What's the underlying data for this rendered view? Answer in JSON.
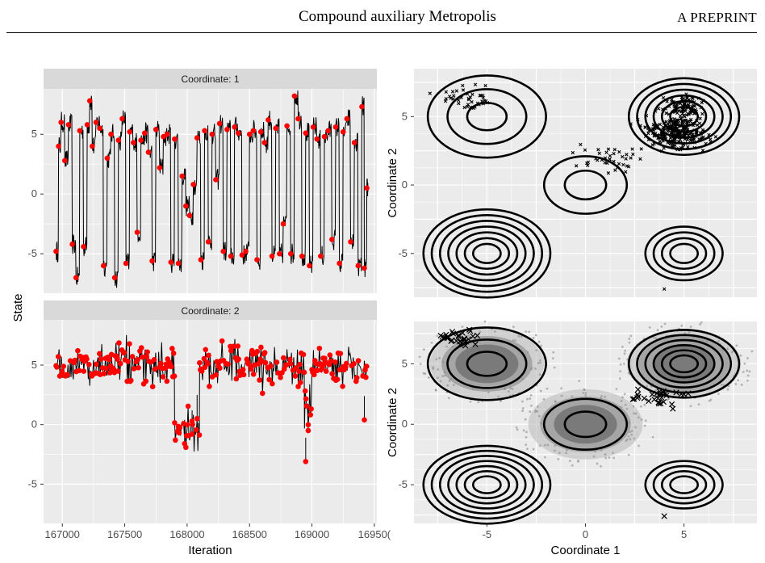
{
  "header": {
    "title": "Compound auxiliary Metropolis",
    "right": "A PREPRINT"
  },
  "colors": {
    "panel_bg": "#ebebeb",
    "grid": "#ffffff",
    "strip_bg": "#d9d9d9",
    "trace": "#000000",
    "accepted": "#ff0000",
    "samples": "#7a7a7a"
  },
  "chart_data": [
    {
      "type": "line",
      "strip": "Coordinate: 1",
      "ylabel": "State",
      "xlabel": "Iteration",
      "x_ticks": [
        "167000",
        "167500",
        "168000",
        "168500",
        "169000",
        "16950("
      ],
      "y_ticks": [
        "5",
        "0",
        "-5"
      ],
      "xlim": [
        166850,
        169520
      ],
      "ylim": [
        -8.3,
        8.8
      ],
      "points": [
        [
          166950,
          -4.8
        ],
        [
          166970,
          4.0
        ],
        [
          166990,
          6.0
        ],
        [
          167020,
          2.8
        ],
        [
          167050,
          5.8
        ],
        [
          167080,
          -4.2
        ],
        [
          167110,
          -7.0
        ],
        [
          167140,
          5.3
        ],
        [
          167170,
          -4.4
        ],
        [
          167200,
          5.8
        ],
        [
          167220,
          7.8
        ],
        [
          167240,
          4.0
        ],
        [
          167270,
          6.0
        ],
        [
          167300,
          5.5
        ],
        [
          167330,
          -6.0
        ],
        [
          167360,
          3.0
        ],
        [
          167390,
          5.0
        ],
        [
          167420,
          -7.0
        ],
        [
          167450,
          4.5
        ],
        [
          167480,
          6.3
        ],
        [
          167510,
          -5.8
        ],
        [
          167540,
          5.2
        ],
        [
          167570,
          4.3
        ],
        [
          167600,
          -3.2
        ],
        [
          167630,
          4.5
        ],
        [
          167660,
          5.1
        ],
        [
          167690,
          3.5
        ],
        [
          167720,
          -5.6
        ],
        [
          167750,
          5.4
        ],
        [
          167780,
          2.2
        ],
        [
          167810,
          4.8
        ],
        [
          167840,
          5.0
        ],
        [
          167870,
          -5.7
        ],
        [
          167900,
          4.6
        ],
        [
          167930,
          -5.8
        ],
        [
          167960,
          1.5
        ],
        [
          167990,
          -1.0
        ],
        [
          168020,
          -1.8
        ],
        [
          168050,
          0.8
        ],
        [
          168080,
          4.7
        ],
        [
          168110,
          -5.5
        ],
        [
          168140,
          5.3
        ],
        [
          168170,
          -4.0
        ],
        [
          168200,
          5.0
        ],
        [
          168230,
          1.2
        ],
        [
          168260,
          5.9
        ],
        [
          168290,
          -4.8
        ],
        [
          168320,
          5.4
        ],
        [
          168350,
          -5.2
        ],
        [
          168380,
          5.6
        ],
        [
          168410,
          5.1
        ],
        [
          168440,
          -5.1
        ],
        [
          168470,
          -4.8
        ],
        [
          168500,
          5.0
        ],
        [
          168530,
          5.3
        ],
        [
          168560,
          -5.5
        ],
        [
          168590,
          5.2
        ],
        [
          168620,
          4.3
        ],
        [
          168650,
          6.2
        ],
        [
          168680,
          -5.2
        ],
        [
          168710,
          5.5
        ],
        [
          168740,
          -5.0
        ],
        [
          168770,
          -2.5
        ],
        [
          168800,
          5.7
        ],
        [
          168830,
          -5.0
        ],
        [
          168860,
          8.2
        ],
        [
          168890,
          6.3
        ],
        [
          168920,
          -5.2
        ],
        [
          168950,
          5.1
        ],
        [
          168980,
          -6.0
        ],
        [
          169010,
          5.6
        ],
        [
          169040,
          4.6
        ],
        [
          169070,
          -5.2
        ],
        [
          169100,
          4.8
        ],
        [
          169130,
          5.3
        ],
        [
          169160,
          -3.8
        ],
        [
          169190,
          5.6
        ],
        [
          169220,
          -5.8
        ],
        [
          169250,
          5.2
        ],
        [
          169280,
          6.3
        ],
        [
          169310,
          -4.0
        ],
        [
          169340,
          4.3
        ],
        [
          169370,
          -6.0
        ],
        [
          169400,
          7.3
        ],
        [
          169420,
          -6.2
        ],
        [
          169440,
          0.5
        ]
      ]
    },
    {
      "type": "line",
      "strip": "Coordinate: 2",
      "ylabel": "State",
      "xlabel": "Iteration",
      "x_ticks": [
        "167000",
        "167500",
        "168000",
        "168500",
        "169000",
        "16950("
      ],
      "y_ticks": [
        "5",
        "0",
        "-5"
      ],
      "xlim": [
        166850,
        169520
      ],
      "ylim": [
        -8.3,
        8.8
      ],
      "segments": [
        [
          166950,
          167900,
          5.0
        ],
        [
          167900,
          168100,
          -0.5
        ],
        [
          168100,
          168800,
          5.0
        ],
        [
          168800,
          168940,
          4.8
        ],
        [
          168940,
          169000,
          1.0
        ],
        [
          169000,
          169440,
          4.9
        ]
      ],
      "dips": [
        [
          167980,
          -1.6
        ],
        [
          168040,
          -0.8
        ],
        [
          168080,
          0.5
        ],
        [
          168950,
          -3.1
        ],
        [
          168970,
          -0.5
        ],
        [
          169420,
          0.4
        ]
      ]
    },
    {
      "type": "scatter",
      "xlabel": "",
      "ylabel": "Coordinate 2",
      "x_ticks": [
        "-5",
        "0",
        "5"
      ],
      "y_ticks": [
        "5",
        "0",
        "-5"
      ],
      "xlim": [
        -8.7,
        8.7
      ],
      "ylim": [
        -8.2,
        8.5
      ],
      "contours": [
        [
          -5,
          5,
          3
        ],
        [
          0,
          0,
          2
        ],
        [
          5,
          5,
          6
        ],
        [
          -5,
          -5,
          7
        ],
        [
          5,
          -5,
          4
        ]
      ],
      "clusters": [
        [
          -6.2,
          6.4,
          1.1,
          0.8,
          40
        ],
        [
          1.2,
          1.8,
          1.4,
          0.8,
          40
        ],
        [
          4.6,
          3.9,
          1.3,
          1.0,
          260
        ],
        [
          5.0,
          5.8,
          0.7,
          0.7,
          80
        ]
      ],
      "outliers": [
        [
          4.0,
          -7.6
        ]
      ]
    },
    {
      "type": "scatter",
      "xlabel": "Coordinate 1",
      "ylabel": "Coordinate 2",
      "x_ticks": [
        "-5",
        "0",
        "5"
      ],
      "y_ticks": [
        "5",
        "0",
        "-5"
      ],
      "xlim": [
        -8.7,
        8.7
      ],
      "ylim": [
        -8.2,
        8.5
      ],
      "contours": [
        [
          -5,
          5,
          3
        ],
        [
          0,
          0,
          2
        ],
        [
          5,
          5,
          6
        ],
        [
          -5,
          -5,
          7
        ],
        [
          5,
          -5,
          4
        ]
      ],
      "clouds": [
        [
          -5,
          5
        ],
        [
          0,
          0
        ],
        [
          5,
          5
        ]
      ],
      "crosses": [
        [
          -6.5,
          7.2,
          1.0,
          0.5,
          30
        ],
        [
          3.8,
          2.3,
          1.2,
          0.6,
          30
        ]
      ],
      "outliers": [
        [
          4.0,
          -7.6
        ]
      ]
    }
  ]
}
